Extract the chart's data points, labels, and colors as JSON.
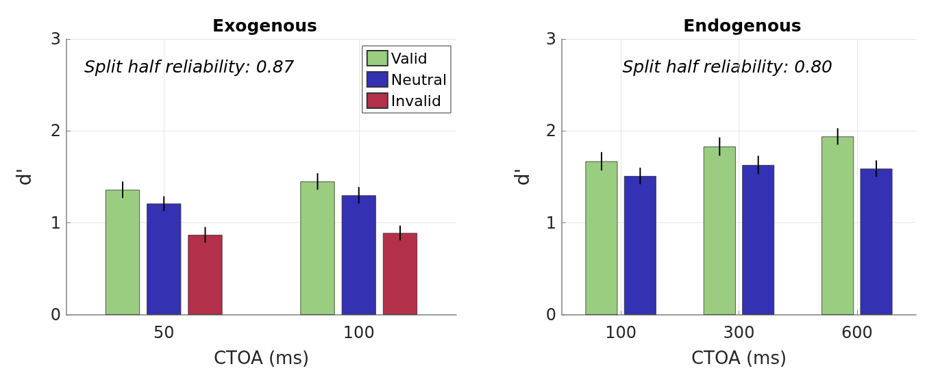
{
  "chart_data": [
    {
      "type": "bar",
      "title": "Exogenous",
      "xlabel": "CTOA (ms)",
      "ylabel": "d'",
      "categories": [
        "50",
        "100"
      ],
      "ylim": [
        0,
        3
      ],
      "yticks": [
        0,
        1,
        2,
        3
      ],
      "grid": true,
      "legend": "top right",
      "annotations": [
        "Split half reliability: 0.87"
      ],
      "series": [
        {
          "name": "Valid",
          "color": "#9acd80",
          "values": [
            1.36,
            1.45
          ],
          "errors": [
            0.09,
            0.09
          ]
        },
        {
          "name": "Neutral",
          "color": "#3431b3",
          "values": [
            1.21,
            1.3
          ],
          "errors": [
            0.08,
            0.09
          ]
        },
        {
          "name": "Invalid",
          "color": "#b2304a",
          "values": [
            0.87,
            0.89
          ],
          "errors": [
            0.085,
            0.08
          ]
        }
      ]
    },
    {
      "type": "bar",
      "title": "Endogenous",
      "xlabel": "CTOA (ms)",
      "ylabel": "d'",
      "categories": [
        "100",
        "300",
        "600"
      ],
      "ylim": [
        0,
        3
      ],
      "yticks": [
        0,
        1,
        2,
        3
      ],
      "grid": true,
      "annotations": [
        "Split half reliability: 0.80"
      ],
      "series": [
        {
          "color": "#9acd80",
          "values": [
            1.67,
            1.83,
            1.94
          ],
          "errors": [
            0.1,
            0.1,
            0.09
          ]
        },
        {
          "color": "#3431b3",
          "values": [
            1.51,
            1.63,
            1.59
          ],
          "errors": [
            0.09,
            0.1,
            0.09
          ]
        }
      ]
    }
  ]
}
